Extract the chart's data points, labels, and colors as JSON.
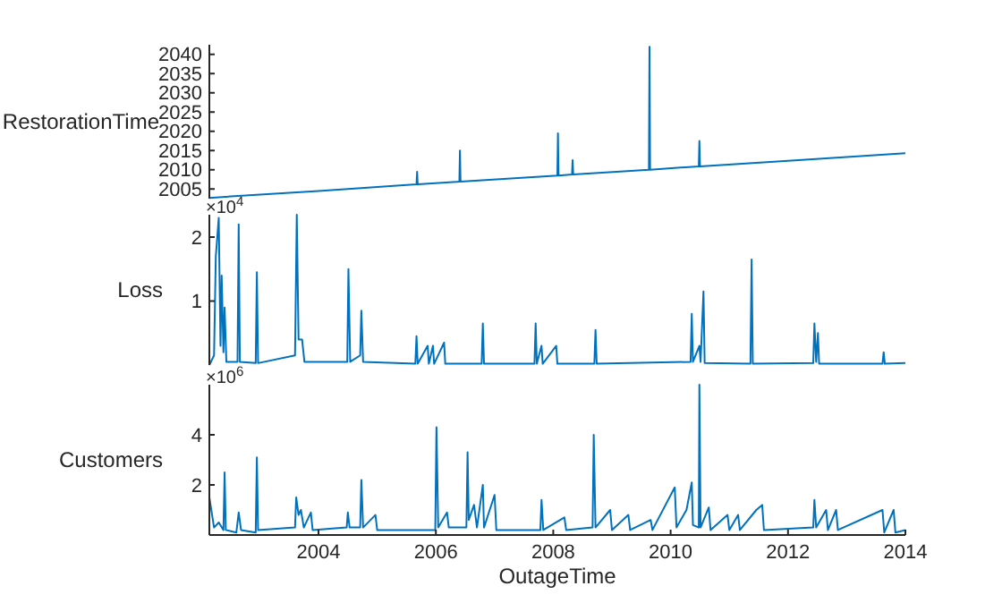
{
  "chart_data": [
    {
      "type": "line",
      "ylabel": "RestorationTime",
      "xlim": [
        2002.14,
        2014
      ],
      "ylim": [
        2002.5,
        2042.5
      ],
      "yticks": [
        2005,
        2010,
        2015,
        2020,
        2025,
        2030,
        2035,
        2040
      ],
      "tick_labels": "y",
      "series": [
        {
          "color": "#0072bd",
          "x": [
            2002.14,
            2004,
            2005.67,
            2005.68,
            2005.69,
            2006.4,
            2006.41,
            2006.42,
            2008.07,
            2008.08,
            2008.09,
            2008.32,
            2008.33,
            2008.34,
            2009.63,
            2009.64,
            2009.65,
            2010.48,
            2010.49,
            2010.5,
            2012,
            2014
          ],
          "values": [
            2002.7,
            2004.5,
            2006.2,
            2009.5,
            2006.2,
            2006.9,
            2015,
            2006.9,
            2008.5,
            2019.5,
            2008.5,
            2008.8,
            2012.5,
            2008.8,
            2010,
            2042,
            2010,
            2010.9,
            2017.5,
            2010.9,
            2012.3,
            2014.3
          ]
        }
      ]
    },
    {
      "type": "line",
      "ylabel": "Loss",
      "xlim": [
        2002.14,
        2014
      ],
      "ylim": [
        0,
        2.35
      ],
      "yticks": [
        1,
        2
      ],
      "tick_labels": "y",
      "annotations": [
        "×10$^{4}$"
      ],
      "series": [
        {
          "color": "#0072bd",
          "x": [
            2002.14,
            2002.22,
            2002.25,
            2002.3,
            2002.33,
            2002.35,
            2002.38,
            2002.4,
            2002.43,
            2002.62,
            2002.64,
            2002.66,
            2002.93,
            2002.95,
            2002.97,
            2003.6,
            2003.63,
            2003.66,
            2003.72,
            2003.76,
            2004.49,
            2004.51,
            2004.54,
            2004.71,
            2004.73,
            2004.76,
            2005.65,
            2005.67,
            2005.69,
            2005.86,
            2005.88,
            2005.95,
            2005.97,
            2006.14,
            2006.16,
            2006.78,
            2006.8,
            2006.82,
            2007.68,
            2007.7,
            2007.72,
            2007.8,
            2007.82,
            2008.05,
            2008.07,
            2008.7,
            2008.72,
            2008.74,
            2010.34,
            2010.36,
            2010.38,
            2010.49,
            2010.51,
            2010.56,
            2010.58,
            2011.36,
            2011.38,
            2011.4,
            2012.43,
            2012.45,
            2012.48,
            2012.51,
            2012.53,
            2013.61,
            2013.63,
            2013.65,
            2014
          ],
          "values": [
            0,
            0.15,
            1.7,
            2.3,
            0.3,
            1.4,
            0.2,
            0.9,
            0.05,
            0.05,
            2.2,
            0.05,
            0.03,
            1.45,
            0.03,
            0.15,
            2.35,
            0.4,
            0.4,
            0.05,
            0.05,
            1.5,
            0.05,
            0.15,
            0.85,
            0.05,
            0.02,
            0.45,
            0.02,
            0.3,
            0.02,
            0.3,
            0.02,
            0.35,
            0.02,
            0.02,
            0.65,
            0.02,
            0.02,
            0.65,
            0.02,
            0.3,
            0.02,
            0.3,
            0.02,
            0.02,
            0.55,
            0.02,
            0.05,
            0.8,
            0.05,
            0.3,
            0.05,
            1.15,
            0.03,
            0.02,
            1.65,
            0.02,
            0.03,
            0.65,
            0.05,
            0.5,
            0.02,
            0.02,
            0.2,
            0.02,
            0.03
          ]
        }
      ]
    },
    {
      "type": "line",
      "ylabel": "Customers",
      "xlabel": "OutageTime",
      "xlim": [
        2002.14,
        2014
      ],
      "ylim": [
        0,
        6
      ],
      "xticks": [
        2004,
        2006,
        2008,
        2010,
        2012,
        2014
      ],
      "yticks": [
        2,
        4
      ],
      "annotations": [
        "×10$^{6}$"
      ],
      "series": [
        {
          "color": "#0072bd",
          "x": [
            2002.14,
            2002.22,
            2002.3,
            2002.38,
            2002.4,
            2002.42,
            2002.6,
            2002.64,
            2002.68,
            2002.93,
            2002.95,
            2002.97,
            2003.6,
            2003.62,
            2003.66,
            2003.7,
            2003.75,
            2003.87,
            2003.9,
            2004.48,
            2004.5,
            2004.53,
            2004.71,
            2004.73,
            2004.76,
            2004.97,
            2005.0,
            2005.99,
            2006.01,
            2006.04,
            2006.19,
            2006.22,
            2006.52,
            2006.54,
            2006.56,
            2006.65,
            2006.7,
            2006.8,
            2006.82,
            2007.0,
            2007.03,
            2007.78,
            2007.8,
            2007.83,
            2008.19,
            2008.22,
            2008.67,
            2008.69,
            2008.72,
            2008.97,
            2009.0,
            2009.28,
            2009.31,
            2009.66,
            2009.69,
            2010.07,
            2010.1,
            2010.27,
            2010.36,
            2010.38,
            2010.48,
            2010.49,
            2010.51,
            2010.65,
            2010.68,
            2010.97,
            2011.0,
            2011.15,
            2011.18,
            2011.46,
            2011.56,
            2011.59,
            2012.43,
            2012.45,
            2012.48,
            2012.65,
            2012.68,
            2012.82,
            2012.85,
            2013.61,
            2013.64,
            2013.8,
            2013.83,
            2014
          ],
          "values": [
            1.5,
            0.3,
            0.5,
            0.2,
            2.5,
            0.2,
            0.1,
            0.9,
            0.2,
            0.1,
            3.1,
            0.2,
            0.3,
            1.5,
            0.8,
            1.0,
            0.3,
            0.9,
            0.2,
            0.3,
            0.9,
            0.3,
            0.3,
            2.2,
            0.3,
            0.8,
            0.2,
            0.2,
            4.3,
            0.3,
            0.9,
            0.3,
            0.3,
            3.3,
            0.6,
            1.2,
            0.3,
            2.0,
            0.3,
            1.6,
            0.2,
            0.2,
            1.4,
            0.2,
            0.7,
            0.2,
            0.3,
            4.0,
            0.3,
            1.0,
            0.2,
            0.8,
            0.2,
            0.6,
            0.2,
            1.9,
            0.3,
            1.0,
            2.1,
            0.4,
            0.3,
            6.0,
            0.3,
            1.1,
            0.2,
            0.8,
            0.2,
            0.8,
            0.2,
            1.0,
            1.2,
            0.2,
            0.3,
            1.4,
            0.3,
            1.0,
            0.2,
            1.0,
            0.2,
            1.0,
            0.1,
            1.0,
            0.1,
            0.2
          ]
        }
      ]
    }
  ]
}
